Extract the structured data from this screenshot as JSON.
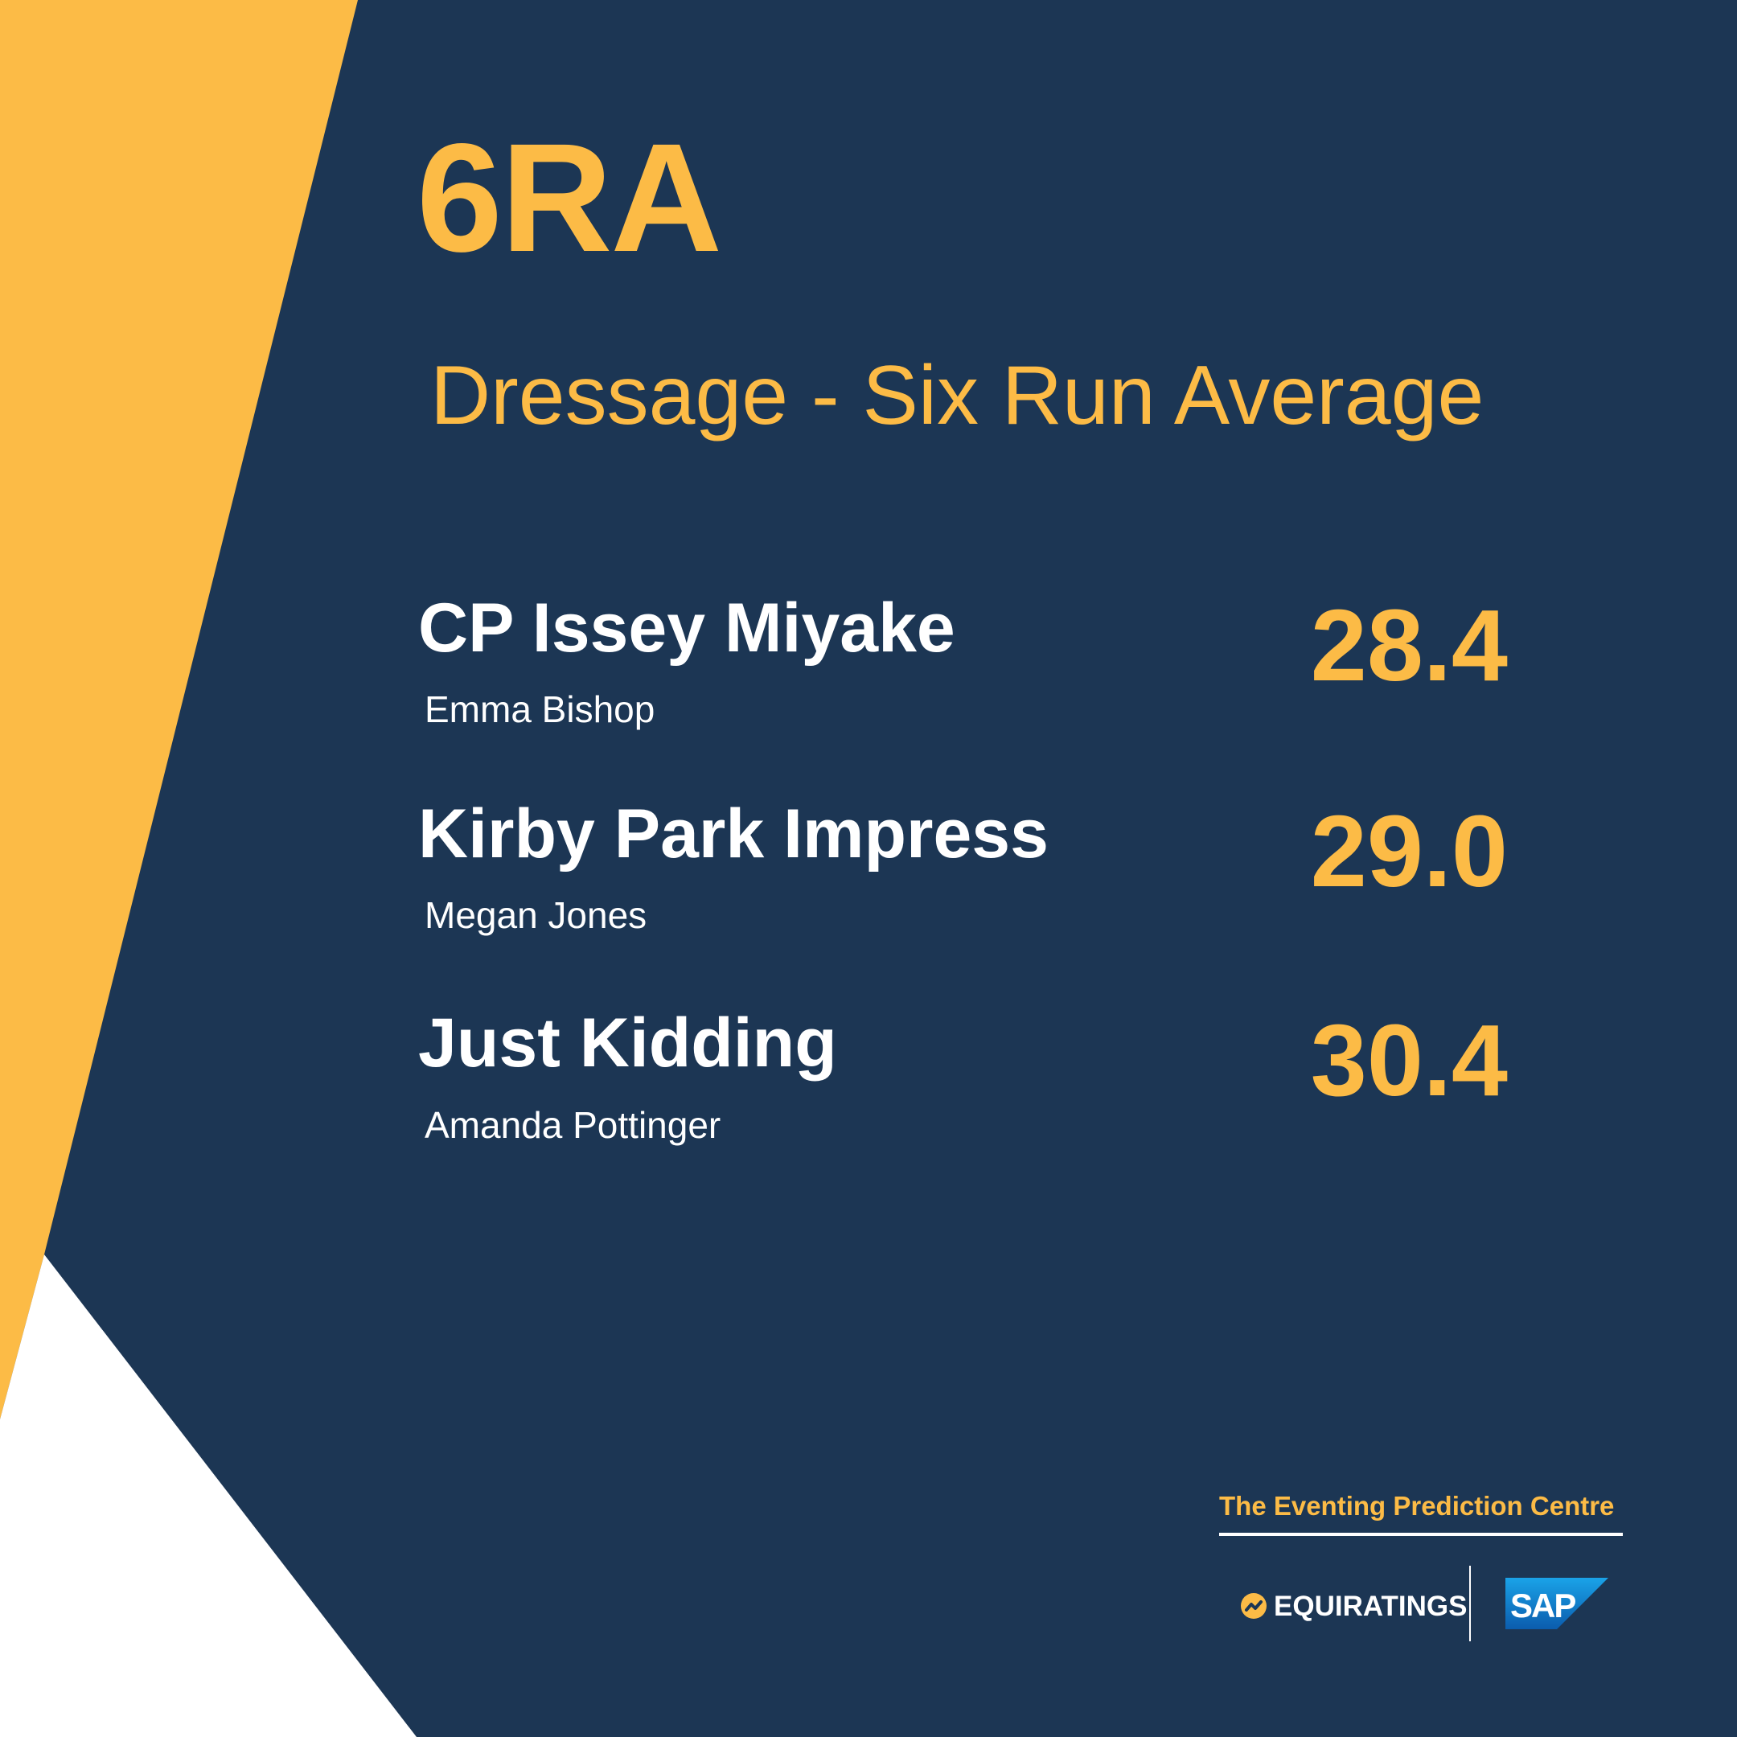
{
  "header": {
    "code": "6RA",
    "subtitle": "Dressage - Six Run Average"
  },
  "entries": [
    {
      "horse": "CP Issey Miyake",
      "rider": "Emma Bishop",
      "score": "28.4"
    },
    {
      "horse": "Kirby Park Impress",
      "rider": "Megan Jones",
      "score": "29.0"
    },
    {
      "horse": "Just Kidding",
      "rider": "Amanda Pottinger",
      "score": "30.4"
    }
  ],
  "footer": {
    "tagline": "The Eventing Prediction Centre",
    "brand": "EQUIRATINGS",
    "partner_logo": "SAP"
  },
  "colors": {
    "background": "#1c3654",
    "accent": "#fcbb46",
    "white": "#ffffff"
  }
}
